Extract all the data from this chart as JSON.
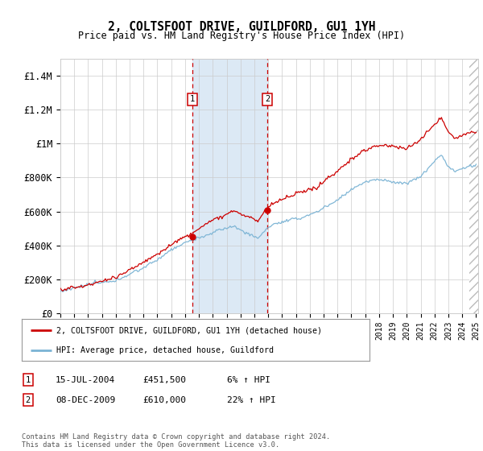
{
  "title": "2, COLTSFOOT DRIVE, GUILDFORD, GU1 1YH",
  "subtitle": "Price paid vs. HM Land Registry's House Price Index (HPI)",
  "ylim": [
    0,
    1500000
  ],
  "yticks": [
    0,
    200000,
    400000,
    600000,
    800000,
    1000000,
    1200000,
    1400000
  ],
  "ytick_labels": [
    "£0",
    "£200K",
    "£400K",
    "£600K",
    "£800K",
    "£1M",
    "£1.2M",
    "£1.4M"
  ],
  "x_start_year": 1995,
  "x_end_year": 2025,
  "sale1_year": 2004.54,
  "sale1_price": 451500,
  "sale2_year": 2009.93,
  "sale2_price": 610000,
  "hpi_color": "#7ab3d4",
  "price_color": "#cc0000",
  "sale_marker_color": "#cc0000",
  "shading_color": "#dce9f5",
  "legend_label_price": "2, COLTSFOOT DRIVE, GUILDFORD, GU1 1YH (detached house)",
  "legend_label_hpi": "HPI: Average price, detached house, Guildford",
  "table_row1": [
    "1",
    "15-JUL-2004",
    "£451,500",
    "6% ↑ HPI"
  ],
  "table_row2": [
    "2",
    "08-DEC-2009",
    "£610,000",
    "22% ↑ HPI"
  ],
  "footnote": "Contains HM Land Registry data © Crown copyright and database right 2024.\nThis data is licensed under the Open Government Licence v3.0.",
  "background_color": "#ffffff",
  "grid_color": "#cccccc",
  "hatch_color": "#bbbbbb"
}
